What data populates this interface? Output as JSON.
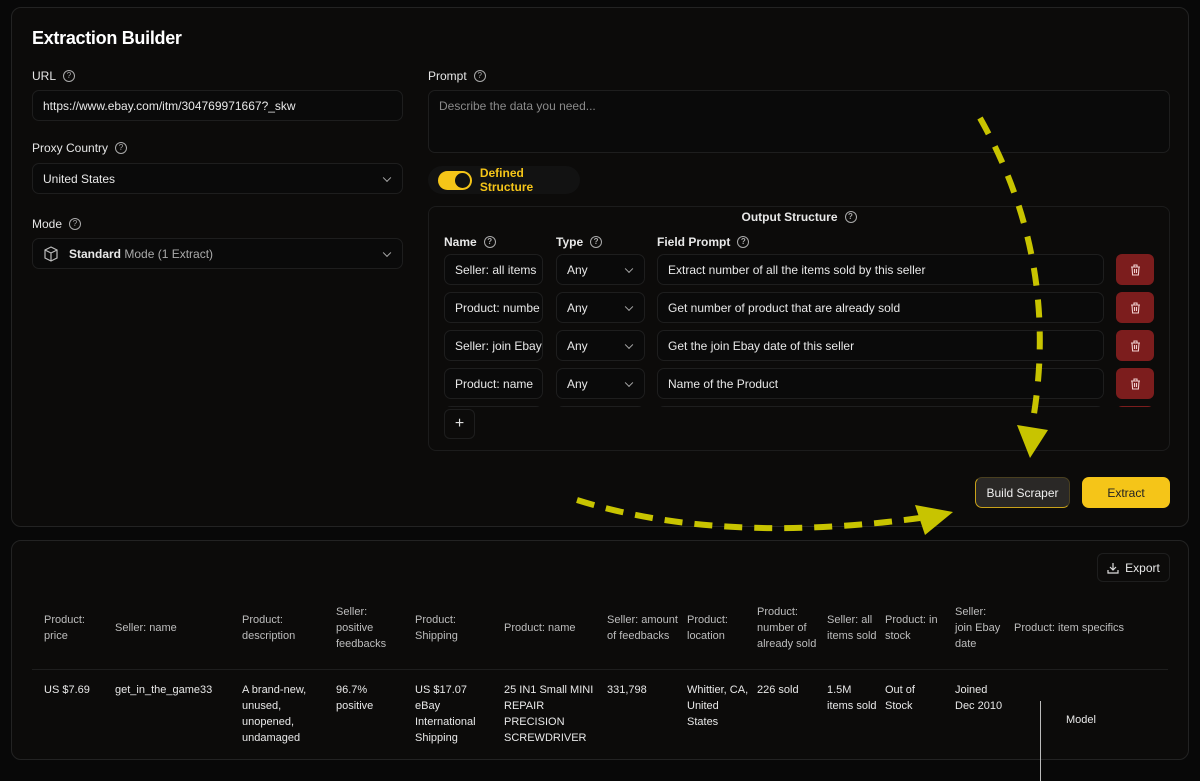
{
  "builder": {
    "title": "Extraction Builder",
    "url_label": "URL",
    "url_value": "https://www.ebay.com/itm/304769971667?_skw",
    "proxy_label": "Proxy Country",
    "proxy_value": "United States",
    "mode_label": "Mode",
    "mode_value_bold": "Standard",
    "mode_value_rest": "Mode (1 Extract)",
    "prompt_label": "Prompt",
    "prompt_placeholder": "Describe the data you need...",
    "toggle_label": "Defined Structure",
    "toggle_on": true,
    "output_title": "Output Structure",
    "col_name": "Name",
    "col_type": "Type",
    "col_prompt": "Field Prompt",
    "fields": [
      {
        "name": "Seller: all items",
        "type": "Any",
        "prompt": "Extract number of all the items sold by this seller"
      },
      {
        "name": "Product: numbe",
        "type": "Any",
        "prompt": "Get number of product that are already sold"
      },
      {
        "name": "Seller: join Ebay",
        "type": "Any",
        "prompt": "Get the join Ebay date of this seller"
      },
      {
        "name": "Product: name",
        "type": "Any",
        "prompt": "Name of the Product"
      }
    ],
    "add_label": "+",
    "build_label": "Build Scraper",
    "extract_label": "Extract"
  },
  "results": {
    "export_label": "Export",
    "headers": [
      "Product: price",
      "Seller: name",
      "Product: description",
      "Seller: positive feedbacks",
      "Product: Shipping",
      "Product: name",
      "Seller: amount of feedbacks",
      "Product: location",
      "Product: number of already sold",
      "Seller: all items sold",
      "Product: in stock",
      "Seller: join Ebay date",
      "Product: item specifics"
    ],
    "row": [
      "US $7.69",
      "get_in_the_game33",
      "A brand-new, unused, unopened, undamaged",
      "96.7% positive",
      "US $17.07 eBay International Shipping",
      "25 IN1 Small MINI REPAIR PRECISION SCREWDRIVER",
      "331,798",
      "Whittier, CA, United States",
      "226 sold",
      "1.5M items sold",
      "Out of Stock",
      "Joined Dec 2010",
      "Model"
    ]
  },
  "colors": {
    "accent": "#f5c518",
    "delete": "#7c1d1d",
    "arrow": "#c8c400"
  }
}
